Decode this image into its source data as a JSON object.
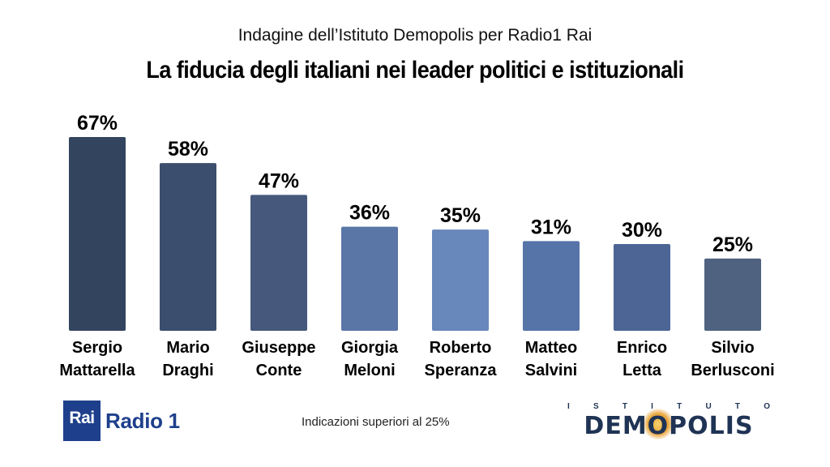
{
  "header": {
    "subtitle": "Indagine dell’Istituto Demopolis per Radio1 Rai",
    "title": "La fiducia degli italiani nei leader politici e istituzionali"
  },
  "chart_data": {
    "type": "bar",
    "title": "La fiducia degli italiani nei leader politici e istituzionali",
    "subtitle": "Indagine dell’Istituto Demopolis per Radio1 Rai",
    "categories": [
      [
        "Sergio",
        "Mattarella"
      ],
      [
        "Mario",
        "Draghi"
      ],
      [
        "Giuseppe",
        "Conte"
      ],
      [
        "Giorgia",
        "Meloni"
      ],
      [
        "Roberto",
        "Speranza"
      ],
      [
        "Matteo",
        "Salvini"
      ],
      [
        "Enrico",
        "Letta"
      ],
      [
        "Silvio",
        "Berlusconi"
      ]
    ],
    "values": [
      67,
      58,
      47,
      36,
      35,
      31,
      30,
      25
    ],
    "value_labels": [
      "67%",
      "58%",
      "47%",
      "36%",
      "35%",
      "31%",
      "30%",
      "25%"
    ],
    "colors": [
      "#33445f",
      "#3c4e6d",
      "#46597c",
      "#5a76a7",
      "#6887bb",
      "#5774a8",
      "#4c6595",
      "#4f6280"
    ],
    "ylim": [
      0,
      67
    ],
    "grid": false,
    "legend": "none"
  },
  "footer": {
    "note": "Indicazioni superiori al 25%",
    "rai_logo": {
      "rai": "Rai",
      "radio": "Radio 1"
    },
    "demopolis_logo": {
      "istituto_letters": [
        "I",
        "S",
        "T",
        "I",
        "T",
        "U",
        "T",
        "O"
      ],
      "name": "DEMOPOLIS"
    }
  }
}
